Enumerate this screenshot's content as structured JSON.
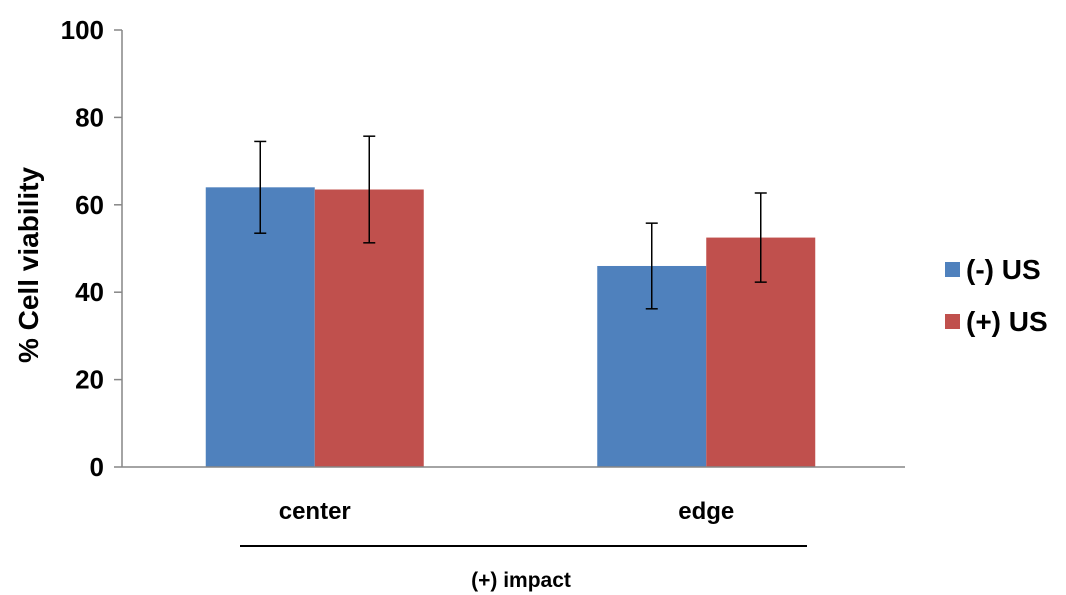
{
  "chart_data": {
    "type": "bar",
    "categories": [
      "center",
      "edge"
    ],
    "series": [
      {
        "name": "(-) US",
        "color": "#4F81BD",
        "values": [
          64,
          46
        ],
        "errors": [
          10.5,
          9.8
        ]
      },
      {
        "name": "(+) US",
        "color": "#C0504D",
        "values": [
          63.5,
          52.5
        ],
        "errors": [
          12.2,
          10.2
        ]
      }
    ],
    "ylabel": "% Cell viability",
    "group_label": "(+) impact",
    "ylim": [
      0,
      100
    ],
    "yticks": [
      "0",
      "20",
      "40",
      "60",
      "80",
      "100"
    ],
    "legend_position": "right",
    "grid": false
  }
}
